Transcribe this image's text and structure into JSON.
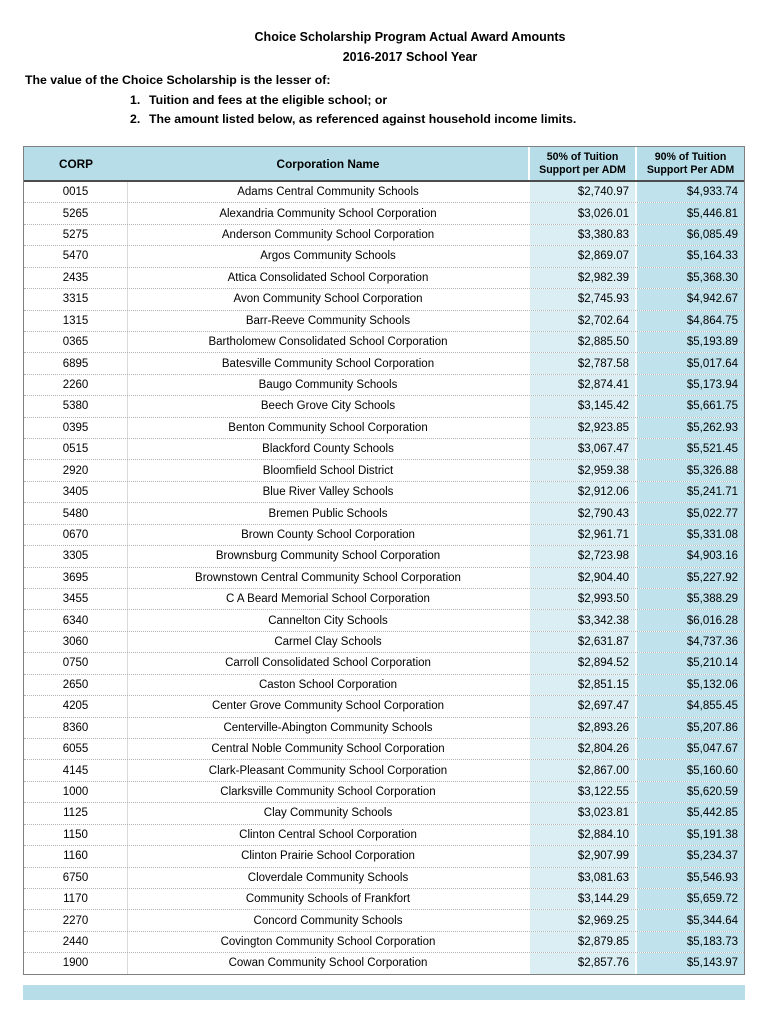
{
  "page": {
    "title_line1": "Choice Scholarship Program Actual Award Amounts",
    "title_line2": "2016-2017 School Year",
    "intro": "The value of the Choice Scholarship is the lesser of:",
    "list": [
      {
        "num": "1.",
        "text": "Tuition and fees at the eligible school; or"
      },
      {
        "num": "2.",
        "text": "The amount listed below, as referenced against household income limits."
      }
    ]
  },
  "colors": {
    "header_bg": "#B7DEE8",
    "col50_bg": "#DAEEF3",
    "col90_bg": "#BFE2EC"
  },
  "table": {
    "header": {
      "corp": "CORP",
      "name": "Corporation Name",
      "v50_line1": "50% of Tuition",
      "v50_line2": "Support per ADM",
      "v90_line1": "90% of Tuition",
      "v90_line2": "Support Per ADM"
    },
    "rows": [
      {
        "corp": "0015",
        "name": "Adams Central Community Schools",
        "v50": "$2,740.97",
        "v90": "$4,933.74"
      },
      {
        "corp": "5265",
        "name": "Alexandria Community School Corporation",
        "v50": "$3,026.01",
        "v90": "$5,446.81"
      },
      {
        "corp": "5275",
        "name": "Anderson Community School Corporation",
        "v50": "$3,380.83",
        "v90": "$6,085.49"
      },
      {
        "corp": "5470",
        "name": "Argos Community Schools",
        "v50": "$2,869.07",
        "v90": "$5,164.33"
      },
      {
        "corp": "2435",
        "name": "Attica Consolidated School Corporation",
        "v50": "$2,982.39",
        "v90": "$5,368.30"
      },
      {
        "corp": "3315",
        "name": "Avon Community School Corporation",
        "v50": "$2,745.93",
        "v90": "$4,942.67"
      },
      {
        "corp": "1315",
        "name": "Barr-Reeve Community Schools",
        "v50": "$2,702.64",
        "v90": "$4,864.75"
      },
      {
        "corp": "0365",
        "name": "Bartholomew Consolidated School Corporation",
        "v50": "$2,885.50",
        "v90": "$5,193.89"
      },
      {
        "corp": "6895",
        "name": "Batesville Community School Corporation",
        "v50": "$2,787.58",
        "v90": "$5,017.64"
      },
      {
        "corp": "2260",
        "name": "Baugo Community Schools",
        "v50": "$2,874.41",
        "v90": "$5,173.94"
      },
      {
        "corp": "5380",
        "name": "Beech Grove City Schools",
        "v50": "$3,145.42",
        "v90": "$5,661.75"
      },
      {
        "corp": "0395",
        "name": "Benton Community School Corporation",
        "v50": "$2,923.85",
        "v90": "$5,262.93"
      },
      {
        "corp": "0515",
        "name": "Blackford County Schools",
        "v50": "$3,067.47",
        "v90": "$5,521.45"
      },
      {
        "corp": "2920",
        "name": "Bloomfield School District",
        "v50": "$2,959.38",
        "v90": "$5,326.88"
      },
      {
        "corp": "3405",
        "name": "Blue River Valley Schools",
        "v50": "$2,912.06",
        "v90": "$5,241.71"
      },
      {
        "corp": "5480",
        "name": "Bremen Public Schools",
        "v50": "$2,790.43",
        "v90": "$5,022.77"
      },
      {
        "corp": "0670",
        "name": "Brown County School Corporation",
        "v50": "$2,961.71",
        "v90": "$5,331.08"
      },
      {
        "corp": "3305",
        "name": "Brownsburg Community School Corporation",
        "v50": "$2,723.98",
        "v90": "$4,903.16"
      },
      {
        "corp": "3695",
        "name": "Brownstown Central Community School Corporation",
        "v50": "$2,904.40",
        "v90": "$5,227.92"
      },
      {
        "corp": "3455",
        "name": "C A Beard Memorial School Corporation",
        "v50": "$2,993.50",
        "v90": "$5,388.29"
      },
      {
        "corp": "6340",
        "name": "Cannelton City Schools",
        "v50": "$3,342.38",
        "v90": "$6,016.28"
      },
      {
        "corp": "3060",
        "name": "Carmel Clay Schools",
        "v50": "$2,631.87",
        "v90": "$4,737.36"
      },
      {
        "corp": "0750",
        "name": "Carroll Consolidated School Corporation",
        "v50": "$2,894.52",
        "v90": "$5,210.14"
      },
      {
        "corp": "2650",
        "name": "Caston School Corporation",
        "v50": "$2,851.15",
        "v90": "$5,132.06"
      },
      {
        "corp": "4205",
        "name": "Center Grove Community School Corporation",
        "v50": "$2,697.47",
        "v90": "$4,855.45"
      },
      {
        "corp": "8360",
        "name": "Centerville-Abington Community Schools",
        "v50": "$2,893.26",
        "v90": "$5,207.86"
      },
      {
        "corp": "6055",
        "name": "Central Noble Community School Corporation",
        "v50": "$2,804.26",
        "v90": "$5,047.67"
      },
      {
        "corp": "4145",
        "name": "Clark-Pleasant Community School Corporation",
        "v50": "$2,867.00",
        "v90": "$5,160.60"
      },
      {
        "corp": "1000",
        "name": "Clarksville Community School Corporation",
        "v50": "$3,122.55",
        "v90": "$5,620.59"
      },
      {
        "corp": "1125",
        "name": "Clay Community Schools",
        "v50": "$3,023.81",
        "v90": "$5,442.85"
      },
      {
        "corp": "1150",
        "name": "Clinton Central School Corporation",
        "v50": "$2,884.10",
        "v90": "$5,191.38"
      },
      {
        "corp": "1160",
        "name": "Clinton Prairie School Corporation",
        "v50": "$2,907.99",
        "v90": "$5,234.37"
      },
      {
        "corp": "6750",
        "name": "Cloverdale Community Schools",
        "v50": "$3,081.63",
        "v90": "$5,546.93"
      },
      {
        "corp": "1170",
        "name": "Community Schools of Frankfort",
        "v50": "$3,144.29",
        "v90": "$5,659.72"
      },
      {
        "corp": "2270",
        "name": "Concord Community Schools",
        "v50": "$2,969.25",
        "v90": "$5,344.64"
      },
      {
        "corp": "2440",
        "name": "Covington Community School Corporation",
        "v50": "$2,879.85",
        "v90": "$5,183.73"
      },
      {
        "corp": "1900",
        "name": "Cowan Community School Corporation",
        "v50": "$2,857.76",
        "v90": "$5,143.97"
      }
    ]
  }
}
